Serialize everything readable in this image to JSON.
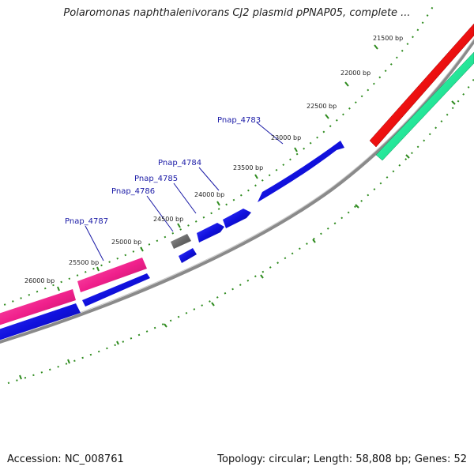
{
  "title": "Polaromonas naphthalenivorans CJ2 plasmid pPNAP05, complete ...",
  "footer": {
    "accession": "Accession: NC_008761",
    "summary": "Topology: circular; Length: 58,808 bp; Genes: 52"
  },
  "colors": {
    "backbone": "#8a8a8a",
    "cds_blue": "#1a1ae6",
    "cds_red": "#ee1111",
    "cds_green": "#22ee99",
    "cds_pink": "#f0208c",
    "cds_gray": "#6a6a6a",
    "ticks": "#2e8b1e",
    "gene_label": "#1a1aa6"
  },
  "position_labels": [
    "21500 bp",
    "22000 bp",
    "22500 bp",
    "23000 bp",
    "23500 bp",
    "24000 bp",
    "24500 bp",
    "25000 bp",
    "25500 bp",
    "26000 bp"
  ],
  "gene_labels": [
    "Pnap_4783",
    "Pnap_4784",
    "Pnap_4785",
    "Pnap_4786",
    "Pnap_4787"
  ]
}
